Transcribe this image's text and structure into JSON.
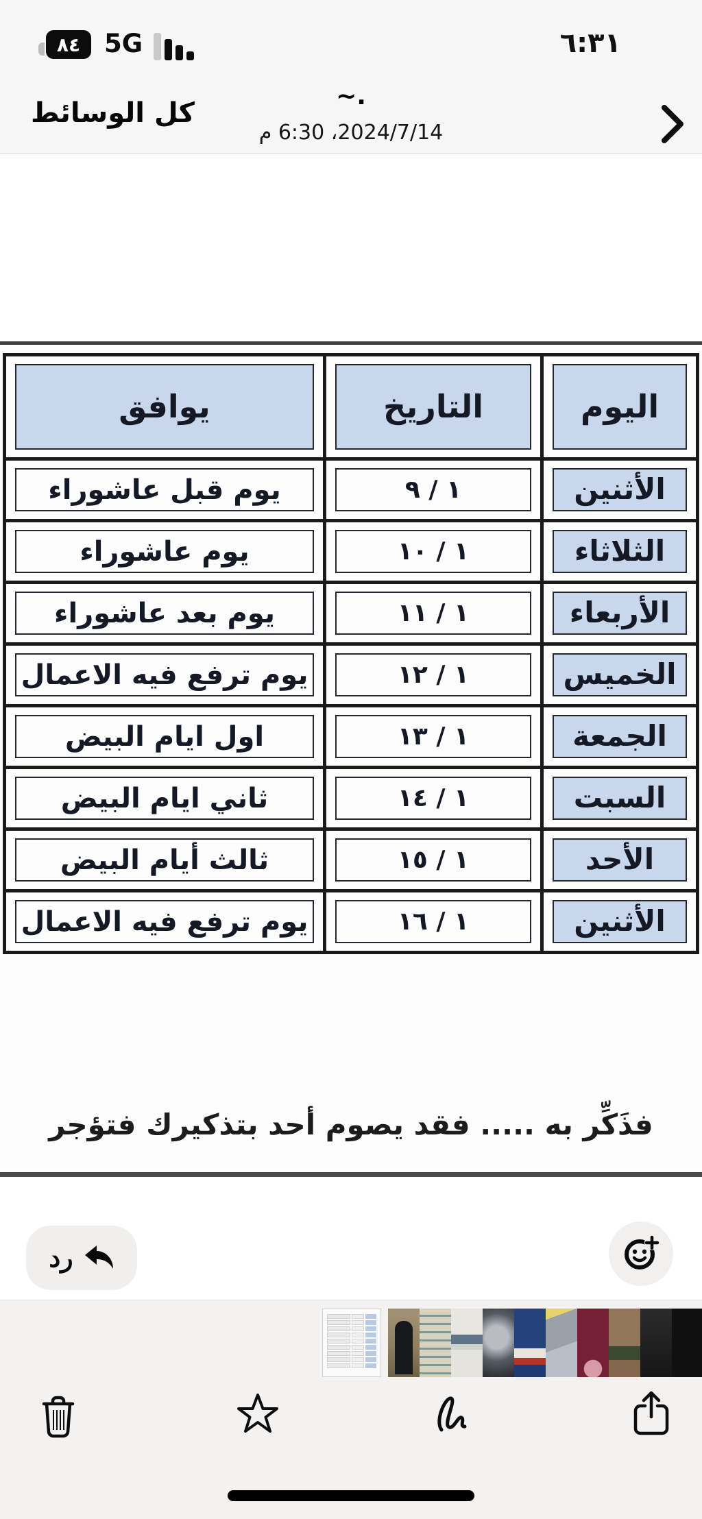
{
  "status_bar": {
    "time": "٦:٣١",
    "battery_percent": "٨٤",
    "network": "5G"
  },
  "nav": {
    "back_label": "كل الوسائط",
    "title": "~.",
    "subtitle": "2024/7/14، 6:30 م"
  },
  "photo": {
    "table": {
      "headers": {
        "day": "اليوم",
        "date": "التاريخ",
        "match": "يوافق"
      },
      "rows": [
        {
          "day": "الأثنين",
          "date": "١ / ٩",
          "match": "يوم قبل عاشوراء"
        },
        {
          "day": "الثلاثاء",
          "date": "١ / ١٠",
          "match": "يوم عاشوراء"
        },
        {
          "day": "الأربعاء",
          "date": "١ / ١١",
          "match": "يوم بعد عاشوراء"
        },
        {
          "day": "الخميس",
          "date": "١ / ١٢",
          "match": "يوم ترفع فيه الاعمال"
        },
        {
          "day": "الجمعة",
          "date": "١ / ١٣",
          "match": "اول ايام البيض"
        },
        {
          "day": "السبت",
          "date": "١ / ١٤",
          "match": "ثاني ايام البيض"
        },
        {
          "day": "الأحد",
          "date": "١ / ١٥",
          "match": "ثالث أيام البيض"
        },
        {
          "day": "الأثنين",
          "date": "١ / ١٦",
          "match": "يوم ترفع فيه الاعمال"
        }
      ]
    },
    "footer_note": "فذَكِّر به ..... فقد يصوم أحد بتذكيرك فتؤجر",
    "colors": {
      "cell_blue": "#c9d7ed",
      "table_border": "#1a1a1a"
    }
  },
  "actions": {
    "reply_label": "رد"
  },
  "filmstrip": {
    "selected": {
      "name": "fasting-table-image"
    },
    "thumbs": [
      {
        "name": "abaya-figure-photo"
      },
      {
        "name": "beige-text-document"
      },
      {
        "name": "white-text-document"
      },
      {
        "name": "vehicle-photo"
      },
      {
        "name": "blue-poster"
      },
      {
        "name": "stacked-boxes-photo"
      },
      {
        "name": "maroon-text-image"
      },
      {
        "name": "brown-photo"
      },
      {
        "name": "dark-image"
      },
      {
        "name": "dark-image-edge"
      }
    ]
  }
}
